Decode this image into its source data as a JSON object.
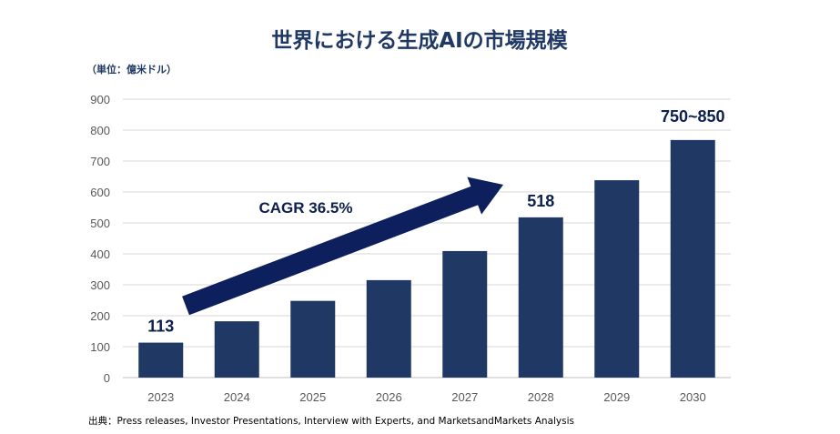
{
  "chart_data": {
    "type": "bar",
    "title": "世界における生成AIの市場規模",
    "unit_label": "（単位：億米ドル）",
    "categories": [
      "2023",
      "2024",
      "2025",
      "2026",
      "2027",
      "2028",
      "2029",
      "2030"
    ],
    "values": [
      113,
      182,
      248,
      315,
      409,
      518,
      638,
      768
    ],
    "data_labels": [
      {
        "category": "2023",
        "text": "113"
      },
      {
        "category": "2028",
        "text": "518"
      },
      {
        "category": "2030",
        "text": "750~850"
      }
    ],
    "annotation": "CAGR 36.5%",
    "ylim": [
      0,
      900
    ],
    "yticks": [
      0,
      100,
      200,
      300,
      400,
      500,
      600,
      700,
      800,
      900
    ],
    "grid": true,
    "bar_color": "#203864",
    "arrow_color": "#0d1f5c",
    "source": "出典：Press releases, Investor Presentations, Interview with Experts, and MarketsandMarkets Analysis"
  }
}
